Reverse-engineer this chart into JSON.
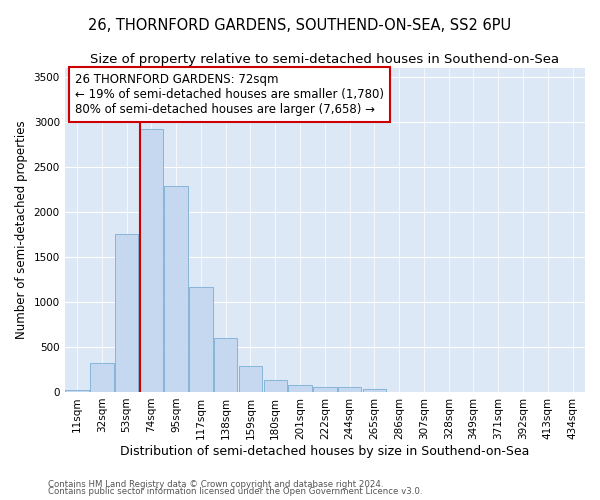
{
  "title": "26, THORNFORD GARDENS, SOUTHEND-ON-SEA, SS2 6PU",
  "subtitle": "Size of property relative to semi-detached houses in Southend-on-Sea",
  "xlabel": "Distribution of semi-detached houses by size in Southend-on-Sea",
  "ylabel": "Number of semi-detached properties",
  "footnote1": "Contains HM Land Registry data © Crown copyright and database right 2024.",
  "footnote2": "Contains public sector information licensed under the Open Government Licence v3.0.",
  "bar_labels": [
    "11sqm",
    "32sqm",
    "53sqm",
    "74sqm",
    "95sqm",
    "117sqm",
    "138sqm",
    "159sqm",
    "180sqm",
    "201sqm",
    "222sqm",
    "244sqm",
    "265sqm",
    "286sqm",
    "307sqm",
    "328sqm",
    "349sqm",
    "371sqm",
    "392sqm",
    "413sqm",
    "434sqm"
  ],
  "bar_values": [
    20,
    320,
    1760,
    2920,
    2290,
    1170,
    600,
    290,
    130,
    80,
    60,
    55,
    35,
    0,
    0,
    0,
    0,
    0,
    0,
    0,
    0
  ],
  "bar_color": "#c5d8ef",
  "bar_edgecolor": "#7bafd4",
  "highlight_index": 3,
  "vline_color": "#cc0000",
  "annotation_title": "26 THORNFORD GARDENS: 72sqm",
  "annotation_line1": "← 19% of semi-detached houses are smaller (1,780)",
  "annotation_line2": "80% of semi-detached houses are larger (7,658) →",
  "annotation_box_color": "#cc0000",
  "ylim": [
    0,
    3600
  ],
  "yticks": [
    0,
    500,
    1000,
    1500,
    2000,
    2500,
    3000,
    3500
  ],
  "bg_color": "#dce8f5",
  "title_fontsize": 10.5,
  "subtitle_fontsize": 9.5,
  "annotation_fontsize": 8.5,
  "axis_fontsize": 7.5,
  "xlabel_fontsize": 9,
  "ylabel_fontsize": 8.5
}
